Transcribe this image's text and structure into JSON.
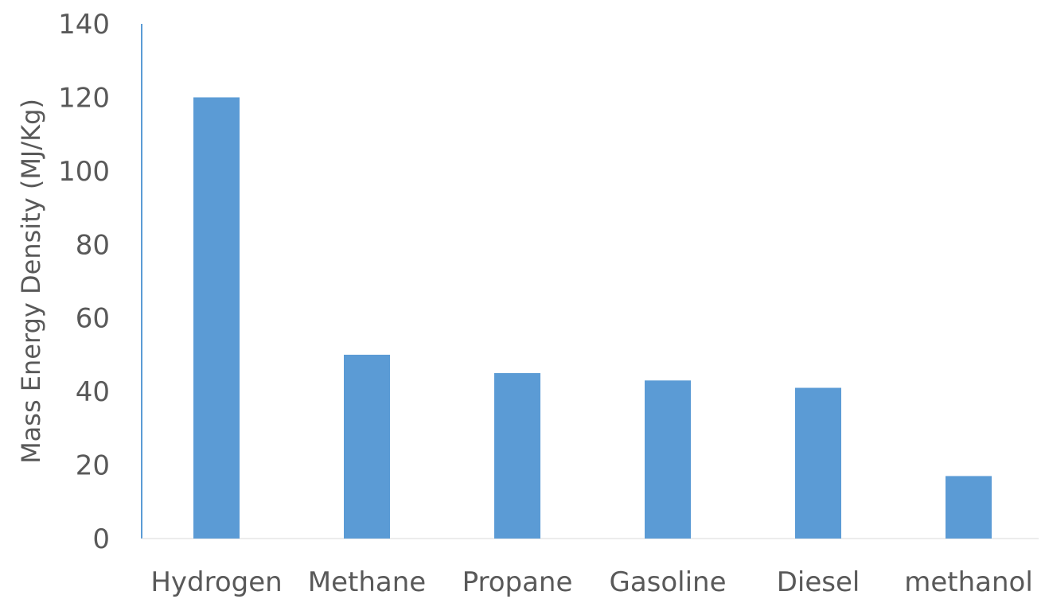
{
  "chart_data": {
    "type": "bar",
    "title": "",
    "xlabel": "",
    "ylabel": "Mass Energy Density (MJ/Kg)",
    "categories": [
      "Hydrogen",
      "Methane",
      "Propane",
      "Gasoline",
      "Diesel",
      "methanol"
    ],
    "values": [
      120,
      50,
      45,
      43,
      41,
      17
    ],
    "ylim": [
      0,
      140
    ],
    "yticks": [
      0,
      20,
      40,
      60,
      80,
      100,
      120,
      140
    ],
    "grid": false,
    "legend": "none",
    "colors": {
      "bar": "#5b9bd5",
      "axis": "#5b9bd5",
      "text": "#595959"
    }
  }
}
